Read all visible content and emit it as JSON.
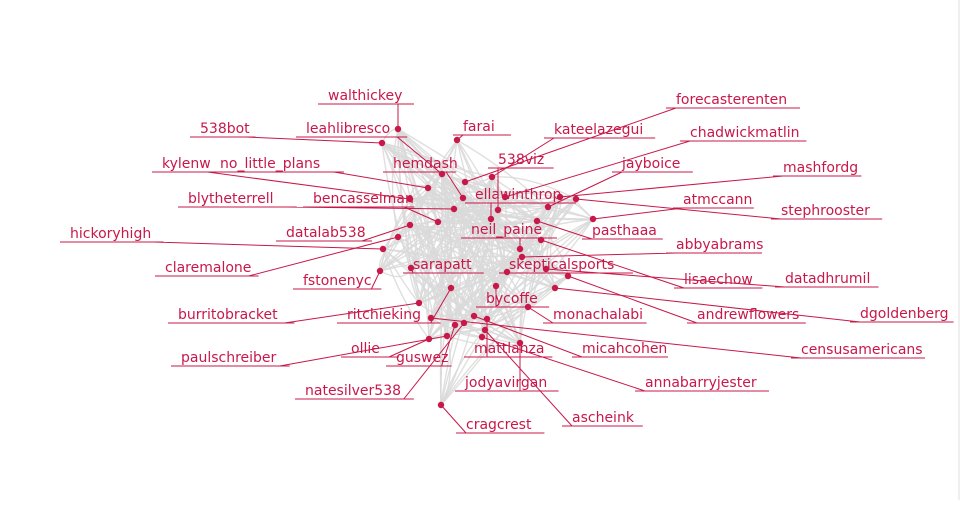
{
  "graph": {
    "accent_color": "#c8184a",
    "edge_color": "#d9d9d9",
    "nodes": [
      {
        "id": "walthickey",
        "label": "walthickey"
      },
      {
        "id": "farai",
        "label": "farai"
      },
      {
        "id": "forecasterenten",
        "label": "forecasterenten"
      },
      {
        "id": "538bot",
        "label": "538bot"
      },
      {
        "id": "leahlibresco",
        "label": "leahlibresco"
      },
      {
        "id": "kateelazegui",
        "label": "kateelazegui"
      },
      {
        "id": "chadwickmatlin",
        "label": "chadwickmatlin"
      },
      {
        "id": "kylenw",
        "label": "kylenw"
      },
      {
        "id": "no_little_plans",
        "label": "no_little_plans"
      },
      {
        "id": "hemdash",
        "label": "hemdash"
      },
      {
        "id": "538viz",
        "label": "538viz"
      },
      {
        "id": "jayboice",
        "label": "jayboice"
      },
      {
        "id": "mashfordg",
        "label": "mashfordg"
      },
      {
        "id": "ellawinthrop",
        "label": "ellawinthrop"
      },
      {
        "id": "blytheterrell",
        "label": "blytheterrell"
      },
      {
        "id": "bencasselman",
        "label": "bencasselman"
      },
      {
        "id": "atmccann",
        "label": "atmccann"
      },
      {
        "id": "stephrooster",
        "label": "stephrooster"
      },
      {
        "id": "hickoryhigh",
        "label": "hickoryhigh"
      },
      {
        "id": "datalab538",
        "label": "datalab538"
      },
      {
        "id": "neil_paine",
        "label": "neil_paine"
      },
      {
        "id": "pasthaaa",
        "label": "pasthaaa"
      },
      {
        "id": "abbyabrams",
        "label": "abbyabrams"
      },
      {
        "id": "claremalone",
        "label": "claremalone"
      },
      {
        "id": "sarapatt",
        "label": "sarapatt"
      },
      {
        "id": "skepticalsports",
        "label": "skepticalsports"
      },
      {
        "id": "fstonenyc",
        "label": "fstonenyc"
      },
      {
        "id": "lisaechow",
        "label": "lisaechow"
      },
      {
        "id": "datadhrumil",
        "label": "datadhrumil"
      },
      {
        "id": "bycoffe",
        "label": "bycoffe"
      },
      {
        "id": "burritobracket",
        "label": "burritobracket"
      },
      {
        "id": "ritchieking",
        "label": "ritchieking"
      },
      {
        "id": "monachalabi",
        "label": "monachalabi"
      },
      {
        "id": "andrewflowers",
        "label": "andrewflowers"
      },
      {
        "id": "dgoldenberg",
        "label": "dgoldenberg"
      },
      {
        "id": "ollie",
        "label": "ollie"
      },
      {
        "id": "mattlanza",
        "label": "mattlanza"
      },
      {
        "id": "micahcohen",
        "label": "micahcohen"
      },
      {
        "id": "censusamericans",
        "label": "censusamericans"
      },
      {
        "id": "paulschreiber",
        "label": "paulschreiber"
      },
      {
        "id": "guswez",
        "label": "guswez"
      },
      {
        "id": "annabarryjester",
        "label": "annabarryjester"
      },
      {
        "id": "natesilver538",
        "label": "natesilver538"
      },
      {
        "id": "jodyavirgan",
        "label": "jodyavirgan"
      },
      {
        "id": "cragcrest",
        "label": "cragcrest"
      },
      {
        "id": "ascheink",
        "label": "ascheink"
      }
    ]
  }
}
